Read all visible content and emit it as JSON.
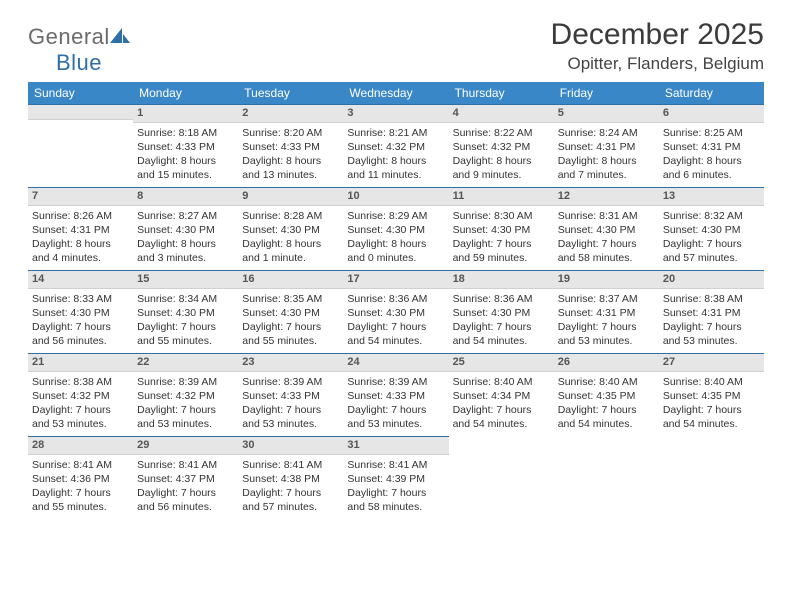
{
  "brand": {
    "general": "General",
    "blue": "Blue"
  },
  "title": "December 2025",
  "location": "Opitter, Flanders, Belgium",
  "colors": {
    "header_bg": "#3a87c8",
    "header_fg": "#ffffff",
    "row_border": "#2f6fa6",
    "daynum_bg": "#e6e6e6",
    "text": "#333333",
    "logo_gray": "#6b6b6b",
    "logo_blue": "#2f6fa6"
  },
  "weekdays": [
    "Sunday",
    "Monday",
    "Tuesday",
    "Wednesday",
    "Thursday",
    "Friday",
    "Saturday"
  ],
  "weeks": [
    [
      null,
      {
        "num": "1",
        "sunrise": "Sunrise: 8:18 AM",
        "sunset": "Sunset: 4:33 PM",
        "day1": "Daylight: 8 hours",
        "day2": "and 15 minutes."
      },
      {
        "num": "2",
        "sunrise": "Sunrise: 8:20 AM",
        "sunset": "Sunset: 4:33 PM",
        "day1": "Daylight: 8 hours",
        "day2": "and 13 minutes."
      },
      {
        "num": "3",
        "sunrise": "Sunrise: 8:21 AM",
        "sunset": "Sunset: 4:32 PM",
        "day1": "Daylight: 8 hours",
        "day2": "and 11 minutes."
      },
      {
        "num": "4",
        "sunrise": "Sunrise: 8:22 AM",
        "sunset": "Sunset: 4:32 PM",
        "day1": "Daylight: 8 hours",
        "day2": "and 9 minutes."
      },
      {
        "num": "5",
        "sunrise": "Sunrise: 8:24 AM",
        "sunset": "Sunset: 4:31 PM",
        "day1": "Daylight: 8 hours",
        "day2": "and 7 minutes."
      },
      {
        "num": "6",
        "sunrise": "Sunrise: 8:25 AM",
        "sunset": "Sunset: 4:31 PM",
        "day1": "Daylight: 8 hours",
        "day2": "and 6 minutes."
      }
    ],
    [
      {
        "num": "7",
        "sunrise": "Sunrise: 8:26 AM",
        "sunset": "Sunset: 4:31 PM",
        "day1": "Daylight: 8 hours",
        "day2": "and 4 minutes."
      },
      {
        "num": "8",
        "sunrise": "Sunrise: 8:27 AM",
        "sunset": "Sunset: 4:30 PM",
        "day1": "Daylight: 8 hours",
        "day2": "and 3 minutes."
      },
      {
        "num": "9",
        "sunrise": "Sunrise: 8:28 AM",
        "sunset": "Sunset: 4:30 PM",
        "day1": "Daylight: 8 hours",
        "day2": "and 1 minute."
      },
      {
        "num": "10",
        "sunrise": "Sunrise: 8:29 AM",
        "sunset": "Sunset: 4:30 PM",
        "day1": "Daylight: 8 hours",
        "day2": "and 0 minutes."
      },
      {
        "num": "11",
        "sunrise": "Sunrise: 8:30 AM",
        "sunset": "Sunset: 4:30 PM",
        "day1": "Daylight: 7 hours",
        "day2": "and 59 minutes."
      },
      {
        "num": "12",
        "sunrise": "Sunrise: 8:31 AM",
        "sunset": "Sunset: 4:30 PM",
        "day1": "Daylight: 7 hours",
        "day2": "and 58 minutes."
      },
      {
        "num": "13",
        "sunrise": "Sunrise: 8:32 AM",
        "sunset": "Sunset: 4:30 PM",
        "day1": "Daylight: 7 hours",
        "day2": "and 57 minutes."
      }
    ],
    [
      {
        "num": "14",
        "sunrise": "Sunrise: 8:33 AM",
        "sunset": "Sunset: 4:30 PM",
        "day1": "Daylight: 7 hours",
        "day2": "and 56 minutes."
      },
      {
        "num": "15",
        "sunrise": "Sunrise: 8:34 AM",
        "sunset": "Sunset: 4:30 PM",
        "day1": "Daylight: 7 hours",
        "day2": "and 55 minutes."
      },
      {
        "num": "16",
        "sunrise": "Sunrise: 8:35 AM",
        "sunset": "Sunset: 4:30 PM",
        "day1": "Daylight: 7 hours",
        "day2": "and 55 minutes."
      },
      {
        "num": "17",
        "sunrise": "Sunrise: 8:36 AM",
        "sunset": "Sunset: 4:30 PM",
        "day1": "Daylight: 7 hours",
        "day2": "and 54 minutes."
      },
      {
        "num": "18",
        "sunrise": "Sunrise: 8:36 AM",
        "sunset": "Sunset: 4:30 PM",
        "day1": "Daylight: 7 hours",
        "day2": "and 54 minutes."
      },
      {
        "num": "19",
        "sunrise": "Sunrise: 8:37 AM",
        "sunset": "Sunset: 4:31 PM",
        "day1": "Daylight: 7 hours",
        "day2": "and 53 minutes."
      },
      {
        "num": "20",
        "sunrise": "Sunrise: 8:38 AM",
        "sunset": "Sunset: 4:31 PM",
        "day1": "Daylight: 7 hours",
        "day2": "and 53 minutes."
      }
    ],
    [
      {
        "num": "21",
        "sunrise": "Sunrise: 8:38 AM",
        "sunset": "Sunset: 4:32 PM",
        "day1": "Daylight: 7 hours",
        "day2": "and 53 minutes."
      },
      {
        "num": "22",
        "sunrise": "Sunrise: 8:39 AM",
        "sunset": "Sunset: 4:32 PM",
        "day1": "Daylight: 7 hours",
        "day2": "and 53 minutes."
      },
      {
        "num": "23",
        "sunrise": "Sunrise: 8:39 AM",
        "sunset": "Sunset: 4:33 PM",
        "day1": "Daylight: 7 hours",
        "day2": "and 53 minutes."
      },
      {
        "num": "24",
        "sunrise": "Sunrise: 8:39 AM",
        "sunset": "Sunset: 4:33 PM",
        "day1": "Daylight: 7 hours",
        "day2": "and 53 minutes."
      },
      {
        "num": "25",
        "sunrise": "Sunrise: 8:40 AM",
        "sunset": "Sunset: 4:34 PM",
        "day1": "Daylight: 7 hours",
        "day2": "and 54 minutes."
      },
      {
        "num": "26",
        "sunrise": "Sunrise: 8:40 AM",
        "sunset": "Sunset: 4:35 PM",
        "day1": "Daylight: 7 hours",
        "day2": "and 54 minutes."
      },
      {
        "num": "27",
        "sunrise": "Sunrise: 8:40 AM",
        "sunset": "Sunset: 4:35 PM",
        "day1": "Daylight: 7 hours",
        "day2": "and 54 minutes."
      }
    ],
    [
      {
        "num": "28",
        "sunrise": "Sunrise: 8:41 AM",
        "sunset": "Sunset: 4:36 PM",
        "day1": "Daylight: 7 hours",
        "day2": "and 55 minutes."
      },
      {
        "num": "29",
        "sunrise": "Sunrise: 8:41 AM",
        "sunset": "Sunset: 4:37 PM",
        "day1": "Daylight: 7 hours",
        "day2": "and 56 minutes."
      },
      {
        "num": "30",
        "sunrise": "Sunrise: 8:41 AM",
        "sunset": "Sunset: 4:38 PM",
        "day1": "Daylight: 7 hours",
        "day2": "and 57 minutes."
      },
      {
        "num": "31",
        "sunrise": "Sunrise: 8:41 AM",
        "sunset": "Sunset: 4:39 PM",
        "day1": "Daylight: 7 hours",
        "day2": "and 58 minutes."
      },
      null,
      null,
      null
    ]
  ]
}
